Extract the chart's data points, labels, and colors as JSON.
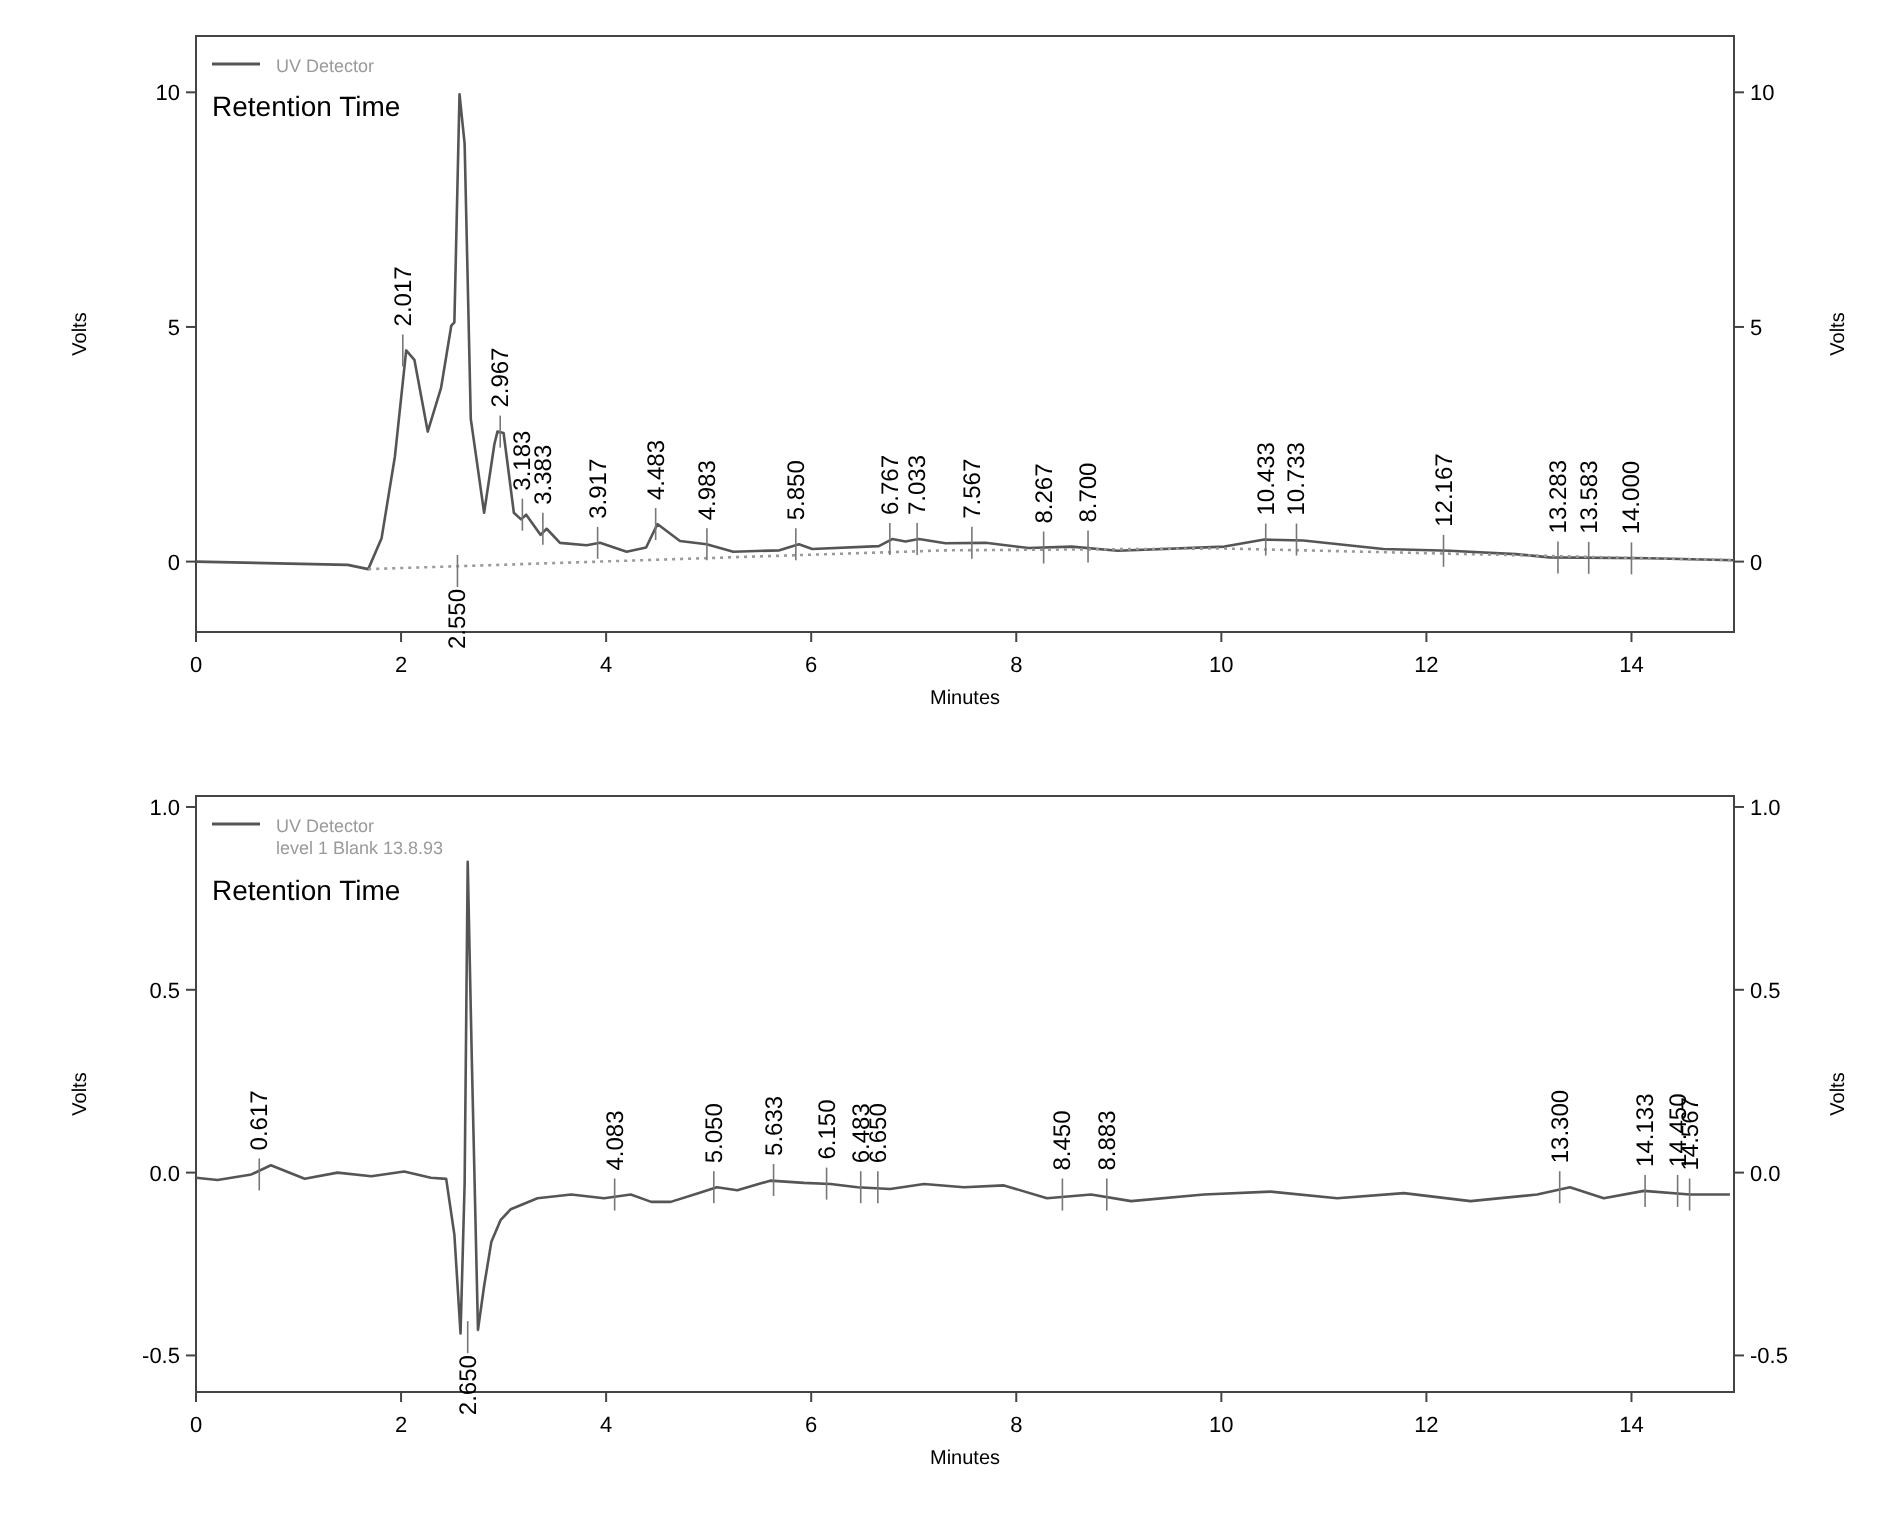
{
  "chart_data": [
    {
      "type": "line",
      "xlabel": "Minutes",
      "ylabel": "Volts",
      "y2label": "Volts",
      "legend": "top left",
      "legend_title": "Retention Time",
      "xlim": [
        0,
        15
      ],
      "xticks": [
        0,
        2,
        4,
        6,
        8,
        10,
        12,
        14
      ],
      "ylim": [
        -1.5,
        11.2
      ],
      "yticks": [
        0,
        5,
        10
      ],
      "y2lim": [
        -1.5,
        11.2
      ],
      "y2ticks": [
        0,
        5,
        10
      ],
      "series": [
        {
          "name": "UV Detector",
          "color": "#555555",
          "x": [
            0,
            1.48,
            1.68,
            1.81,
            1.94,
            2.05,
            2.13,
            2.26,
            2.39,
            2.49,
            2.52,
            2.57,
            2.62,
            2.68,
            2.81,
            2.91,
            2.94,
            3.0,
            3.1,
            3.17,
            3.22,
            3.36,
            3.42,
            3.55,
            3.81,
            3.94,
            4.2,
            4.39,
            4.5,
            4.72,
            4.98,
            5.24,
            5.69,
            5.88,
            6.01,
            6.66,
            6.79,
            6.92,
            7.05,
            7.31,
            7.7,
            8.12,
            8.54,
            8.99,
            10.03,
            10.42,
            10.8,
            11.58,
            12.23,
            12.87,
            13.2,
            14.17,
            15.0
          ],
          "values": [
            0,
            -0.07,
            -0.16,
            0.5,
            2.24,
            4.5,
            4.3,
            2.77,
            3.7,
            5.03,
            5.1,
            9.96,
            8.9,
            3.04,
            1.04,
            2.5,
            2.77,
            2.74,
            1.04,
            0.9,
            1.0,
            0.57,
            0.7,
            0.4,
            0.35,
            0.4,
            0.21,
            0.3,
            0.8,
            0.44,
            0.37,
            0.21,
            0.24,
            0.37,
            0.27,
            0.33,
            0.48,
            0.43,
            0.48,
            0.39,
            0.4,
            0.29,
            0.32,
            0.23,
            0.32,
            0.47,
            0.45,
            0.27,
            0.23,
            0.16,
            0.09,
            0.07,
            0.03
          ]
        },
        {
          "color": "#999999",
          "line_style": "dotted",
          "x": [
            1.68,
            7.31,
            10.0,
            15.0
          ],
          "values": [
            -0.16,
            0.24,
            0.28,
            0.03
          ]
        }
      ],
      "annotations": [
        {
          "text": "2.017",
          "x": 2.017,
          "y": 4.5
        },
        {
          "text": "2.550",
          "x": 2.55,
          "y": -0.2
        },
        {
          "text": "2.967",
          "x": 2.967,
          "y": 2.77
        },
        {
          "text": "3.183",
          "x": 3.183,
          "y": 1.0
        },
        {
          "text": "3.383",
          "x": 3.383,
          "y": 0.7
        },
        {
          "text": "3.917",
          "x": 3.917,
          "y": 0.4
        },
        {
          "text": "4.483",
          "x": 4.483,
          "y": 0.8
        },
        {
          "text": "4.983",
          "x": 4.983,
          "y": 0.37
        },
        {
          "text": "5.850",
          "x": 5.85,
          "y": 0.37
        },
        {
          "text": "6.767",
          "x": 6.767,
          "y": 0.48
        },
        {
          "text": "7.033",
          "x": 7.033,
          "y": 0.48
        },
        {
          "text": "7.567",
          "x": 7.567,
          "y": 0.4
        },
        {
          "text": "8.267",
          "x": 8.267,
          "y": 0.3
        },
        {
          "text": "8.700",
          "x": 8.7,
          "y": 0.32
        },
        {
          "text": "10.433",
          "x": 10.433,
          "y": 0.47
        },
        {
          "text": "10.733",
          "x": 10.733,
          "y": 0.47
        },
        {
          "text": "12.167",
          "x": 12.167,
          "y": 0.23
        },
        {
          "text": "13.283",
          "x": 13.283,
          "y": 0.09
        },
        {
          "text": "13.583",
          "x": 13.583,
          "y": 0.08
        },
        {
          "text": "14.000",
          "x": 14.0,
          "y": 0.07
        }
      ]
    },
    {
      "type": "line",
      "xlabel": "Minutes",
      "ylabel": "Volts",
      "y2label": "Volts",
      "legend": "top left",
      "legend_title": "Retention Time",
      "xlim": [
        0,
        15
      ],
      "xticks": [
        0,
        2,
        4,
        6,
        8,
        10,
        12,
        14
      ],
      "ylim": [
        -0.6,
        1.03
      ],
      "yticks": [
        -0.5,
        {
          "value": 0,
          "label": "0.0"
        },
        0.5,
        {
          "value": 1,
          "label": "1.0"
        }
      ],
      "y2lim": [
        -0.6,
        1.03
      ],
      "y2ticks": [
        -0.5,
        {
          "value": 0,
          "label": "0.0"
        },
        0.5,
        {
          "value": 1,
          "label": "1.0"
        }
      ],
      "series": [
        {
          "name": "UV Detector\nlevel 1 Blank 13.8.93",
          "color": "#555555",
          "x": [
            0,
            0.21,
            0.54,
            0.73,
            1.06,
            1.38,
            1.71,
            2.03,
            2.29,
            2.44,
            2.52,
            2.58,
            2.62,
            2.65,
            2.69,
            2.75,
            2.81,
            2.88,
            2.97,
            3.07,
            3.33,
            3.66,
            3.98,
            4.24,
            4.44,
            4.63,
            4.89,
            5.08,
            5.28,
            5.6,
            5.93,
            6.19,
            6.45,
            6.77,
            7.1,
            7.49,
            7.88,
            8.3,
            8.73,
            9.12,
            9.83,
            10.48,
            11.13,
            11.78,
            12.43,
            13.08,
            13.4,
            13.73,
            14.12,
            14.57,
            14.96
          ],
          "values": [
            -0.014,
            -0.02,
            -0.005,
            0.02,
            -0.017,
            0,
            -0.01,
            0.003,
            -0.014,
            -0.017,
            -0.17,
            -0.44,
            -0.03,
            0.85,
            0.31,
            -0.43,
            -0.31,
            -0.19,
            -0.13,
            -0.1,
            -0.07,
            -0.06,
            -0.07,
            -0.06,
            -0.08,
            -0.08,
            -0.057,
            -0.04,
            -0.048,
            -0.022,
            -0.028,
            -0.031,
            -0.04,
            -0.045,
            -0.031,
            -0.04,
            -0.035,
            -0.07,
            -0.06,
            -0.078,
            -0.06,
            -0.052,
            -0.07,
            -0.056,
            -0.078,
            -0.06,
            -0.04,
            -0.07,
            -0.05,
            -0.06,
            -0.06
          ]
        }
      ],
      "annotations": [
        {
          "text": "0.617",
          "x": 0.617,
          "y": -0.005
        },
        {
          "text": "2.650",
          "x": 2.65,
          "y": -0.45
        },
        {
          "text": "4.083",
          "x": 4.083,
          "y": -0.06
        },
        {
          "text": "5.050",
          "x": 5.05,
          "y": -0.04
        },
        {
          "text": "5.633",
          "x": 5.633,
          "y": -0.02
        },
        {
          "text": "6.150",
          "x": 6.15,
          "y": -0.03
        },
        {
          "text": "6.483",
          "x": 6.483,
          "y": -0.04
        },
        {
          "text": "6.650",
          "x": 6.65,
          "y": -0.04
        },
        {
          "text": "8.450",
          "x": 8.45,
          "y": -0.06
        },
        {
          "text": "8.883",
          "x": 8.883,
          "y": -0.06
        },
        {
          "text": "13.300",
          "x": 13.3,
          "y": -0.04
        },
        {
          "text": "14.133",
          "x": 14.133,
          "y": -0.05
        },
        {
          "text": "14.450",
          "x": 14.45,
          "y": -0.05
        },
        {
          "text": "14.567",
          "x": 14.567,
          "y": -0.06
        }
      ]
    }
  ]
}
